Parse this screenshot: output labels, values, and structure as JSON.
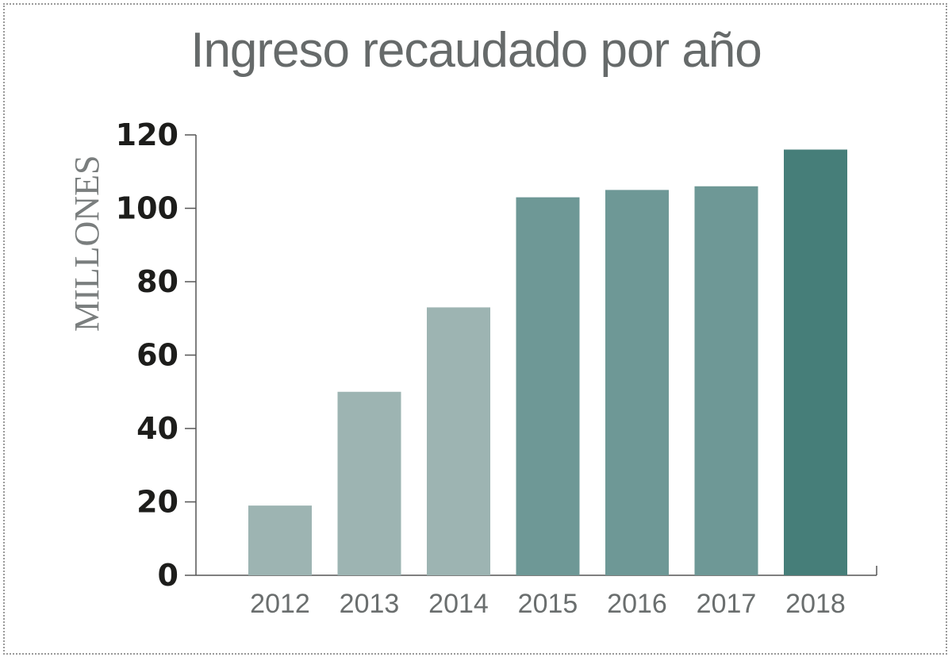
{
  "chart_data": {
    "type": "bar",
    "title": "Ingreso recaudado por año",
    "ylabel": "MILLONES",
    "xlabel": "",
    "categories": [
      "2012",
      "2013",
      "2014",
      "2015",
      "2016",
      "2017",
      "2018"
    ],
    "values": [
      19,
      50,
      73,
      103,
      105,
      106,
      116
    ],
    "ylim": [
      0,
      120
    ],
    "yticks": [
      "0",
      "20",
      "40",
      "60",
      "80",
      "100",
      "120"
    ],
    "colors": [
      "#9db4b2",
      "#9db4b2",
      "#9db4b2",
      "#6e9896",
      "#6e9896",
      "#6e9896",
      "#467e79"
    ],
    "grid": false
  }
}
